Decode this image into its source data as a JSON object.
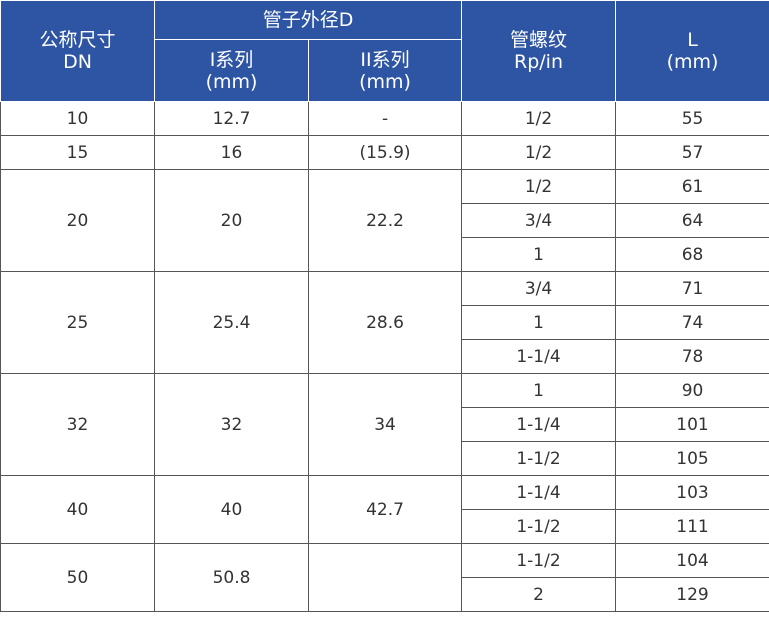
{
  "headers": {
    "dn_line1": "公称尺寸",
    "dn_line2": "DN",
    "outer_d": "管子外径D",
    "series1_line1": "I系列",
    "series1_line2": "(mm)",
    "series2_line1": "II系列",
    "series2_line2": "(mm)",
    "thread_line1": "管螺纹",
    "thread_line2": "Rp/in",
    "l_line1": "L",
    "l_line2": "(mm)"
  },
  "groups": [
    {
      "dn": "10",
      "series1": "12.7",
      "series2": "-",
      "rows": [
        {
          "thread": "1/2",
          "l": "55"
        }
      ]
    },
    {
      "dn": "15",
      "series1": "16",
      "series2": "(15.9)",
      "rows": [
        {
          "thread": "1/2",
          "l": "57"
        }
      ]
    },
    {
      "dn": "20",
      "series1": "20",
      "series2": "22.2",
      "rows": [
        {
          "thread": "1/2",
          "l": "61"
        },
        {
          "thread": "3/4",
          "l": "64"
        },
        {
          "thread": "1",
          "l": "68"
        }
      ]
    },
    {
      "dn": "25",
      "series1": "25.4",
      "series2": "28.6",
      "rows": [
        {
          "thread": "3/4",
          "l": "71"
        },
        {
          "thread": "1",
          "l": "74"
        },
        {
          "thread": "1-1/4",
          "l": "78"
        }
      ]
    },
    {
      "dn": "32",
      "series1": "32",
      "series2": "34",
      "rows": [
        {
          "thread": "1",
          "l": "90"
        },
        {
          "thread": "1-1/4",
          "l": "101"
        },
        {
          "thread": "1-1/2",
          "l": "105"
        }
      ]
    },
    {
      "dn": "40",
      "series1": "40",
      "series2": "42.7",
      "rows": [
        {
          "thread": "1-1/4",
          "l": "103"
        },
        {
          "thread": "1-1/2",
          "l": "111"
        }
      ]
    },
    {
      "dn": "50",
      "series1": "50.8",
      "series2": "",
      "rows": [
        {
          "thread": "1-1/2",
          "l": "104"
        },
        {
          "thread": "2",
          "l": "129"
        }
      ]
    }
  ]
}
